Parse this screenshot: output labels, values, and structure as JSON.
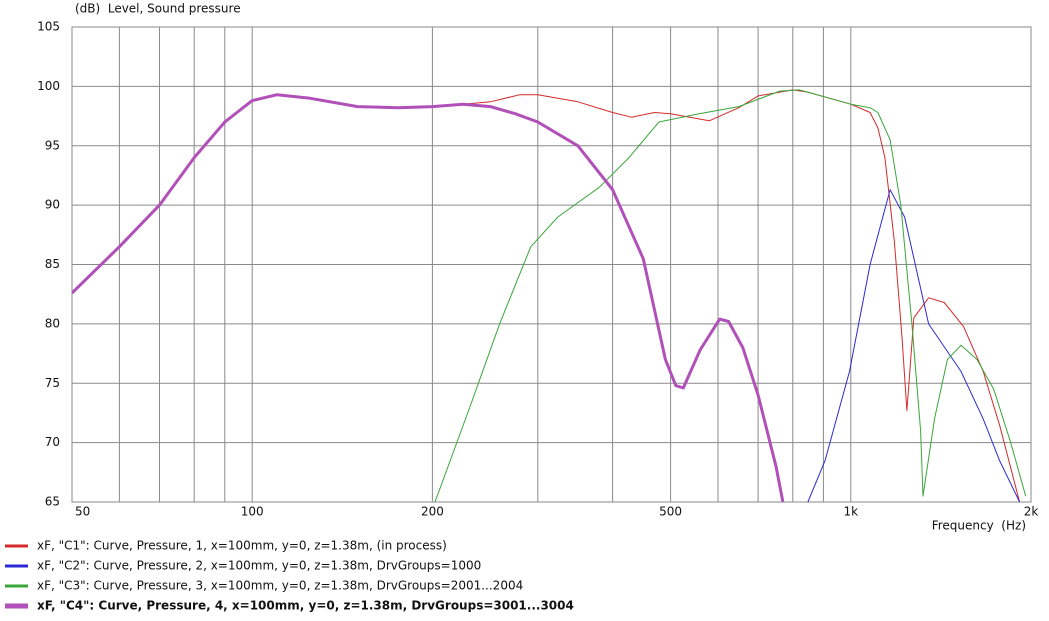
{
  "chart_data": {
    "type": "line",
    "title": "(dB)  Level, Sound pressure",
    "x_label": "Frequency  (Hz)",
    "log_x": true,
    "xlim": [
      50,
      2000
    ],
    "xticks": [
      50,
      100,
      200,
      500,
      {
        "value": 1000,
        "label": "1k"
      },
      {
        "value": 2000,
        "label": "2k"
      }
    ],
    "xminor": [
      60,
      70,
      80,
      90,
      300,
      400,
      600,
      700,
      800,
      900
    ],
    "ylim": [
      65,
      105
    ],
    "yticks": [
      65,
      70,
      75,
      80,
      85,
      90,
      95,
      100,
      105
    ],
    "grid": true,
    "series": [
      {
        "name": "xF, \"C1\": Curve, Pressure, 1, x=100mm, y=0, z=1.38m, (in process)",
        "color": "#d42a2a",
        "width": 1,
        "x": [
          50,
          60,
          70,
          80,
          90,
          100,
          110,
          125,
          150,
          175,
          200,
          225,
          250,
          280,
          300,
          350,
          400,
          430,
          470,
          500,
          580,
          650,
          700,
          800,
          850,
          1000,
          1077,
          1110,
          1140,
          1182,
          1217,
          1241,
          1274,
          1349,
          1432,
          1542,
          1664,
          1772,
          1914
        ],
        "values": [
          82.6,
          86.5,
          90,
          94,
          97,
          98.8,
          99.3,
          99,
          98.3,
          98.2,
          98.3,
          98.5,
          98.7,
          99.3,
          99.3,
          98.7,
          97.8,
          97.4,
          97.8,
          97.7,
          97.1,
          98.2,
          99.2,
          99.7,
          99.5,
          98.5,
          97.8,
          96.5,
          94,
          87,
          79,
          72.7,
          80.5,
          82.2,
          81.8,
          79.8,
          76,
          71.5,
          65
        ]
      },
      {
        "name": "xF, \"C2\": Curve, Pressure, 2, x=100mm, y=0, z=1.38m, DrvGroups=1000",
        "color": "#2a2ad4",
        "width": 1,
        "x": [
          848,
          906,
          995,
          1077,
          1163,
          1230,
          1349,
          1528,
          1664,
          1772,
          1914
        ],
        "values": [
          65,
          68.5,
          76,
          85,
          91.3,
          89,
          80,
          76,
          72,
          68.5,
          65
        ]
      },
      {
        "name": "xF, \"C3\": Curve, Pressure, 3, x=100mm, y=0, z=1.38m, DrvGroups=2001...2004",
        "color": "#3aa63a",
        "width": 1,
        "x": [
          202,
          231,
          259,
          292,
          324,
          380,
          426,
          478,
          558,
          650,
          761,
          820,
          1000,
          1077,
          1110,
          1163,
          1212,
          1265,
          1308,
          1320,
          1380,
          1450,
          1528,
          1625,
          1733,
          1850,
          1960
        ],
        "values": [
          65,
          73,
          80,
          86.5,
          89,
          91.5,
          94,
          97,
          97.7,
          98.3,
          99.6,
          99.7,
          98.5,
          98.2,
          97.8,
          95.5,
          90,
          80,
          71,
          65.5,
          72,
          77,
          78.2,
          77,
          74.5,
          70,
          65.5
        ]
      },
      {
        "name": "xF, \"C4\": Curve, Pressure, 4, x=100mm, y=0, z=1.38m, DrvGroups=3001...3004",
        "color": "#b050b8",
        "width": 3,
        "x": [
          50,
          60,
          70,
          80,
          90,
          100,
          110,
          125,
          150,
          175,
          200,
          225,
          250,
          275,
          300,
          350,
          400,
          450,
          490,
          510,
          525,
          560,
          604,
          625,
          660,
          700,
          750,
          770
        ],
        "values": [
          82.6,
          86.5,
          90,
          94,
          97,
          98.8,
          99.3,
          99,
          98.3,
          98.2,
          98.3,
          98.5,
          98.3,
          97.7,
          97,
          95,
          91.3,
          85.5,
          77,
          74.8,
          74.6,
          77.8,
          80.4,
          80.2,
          78,
          74,
          68,
          65
        ]
      }
    ]
  }
}
